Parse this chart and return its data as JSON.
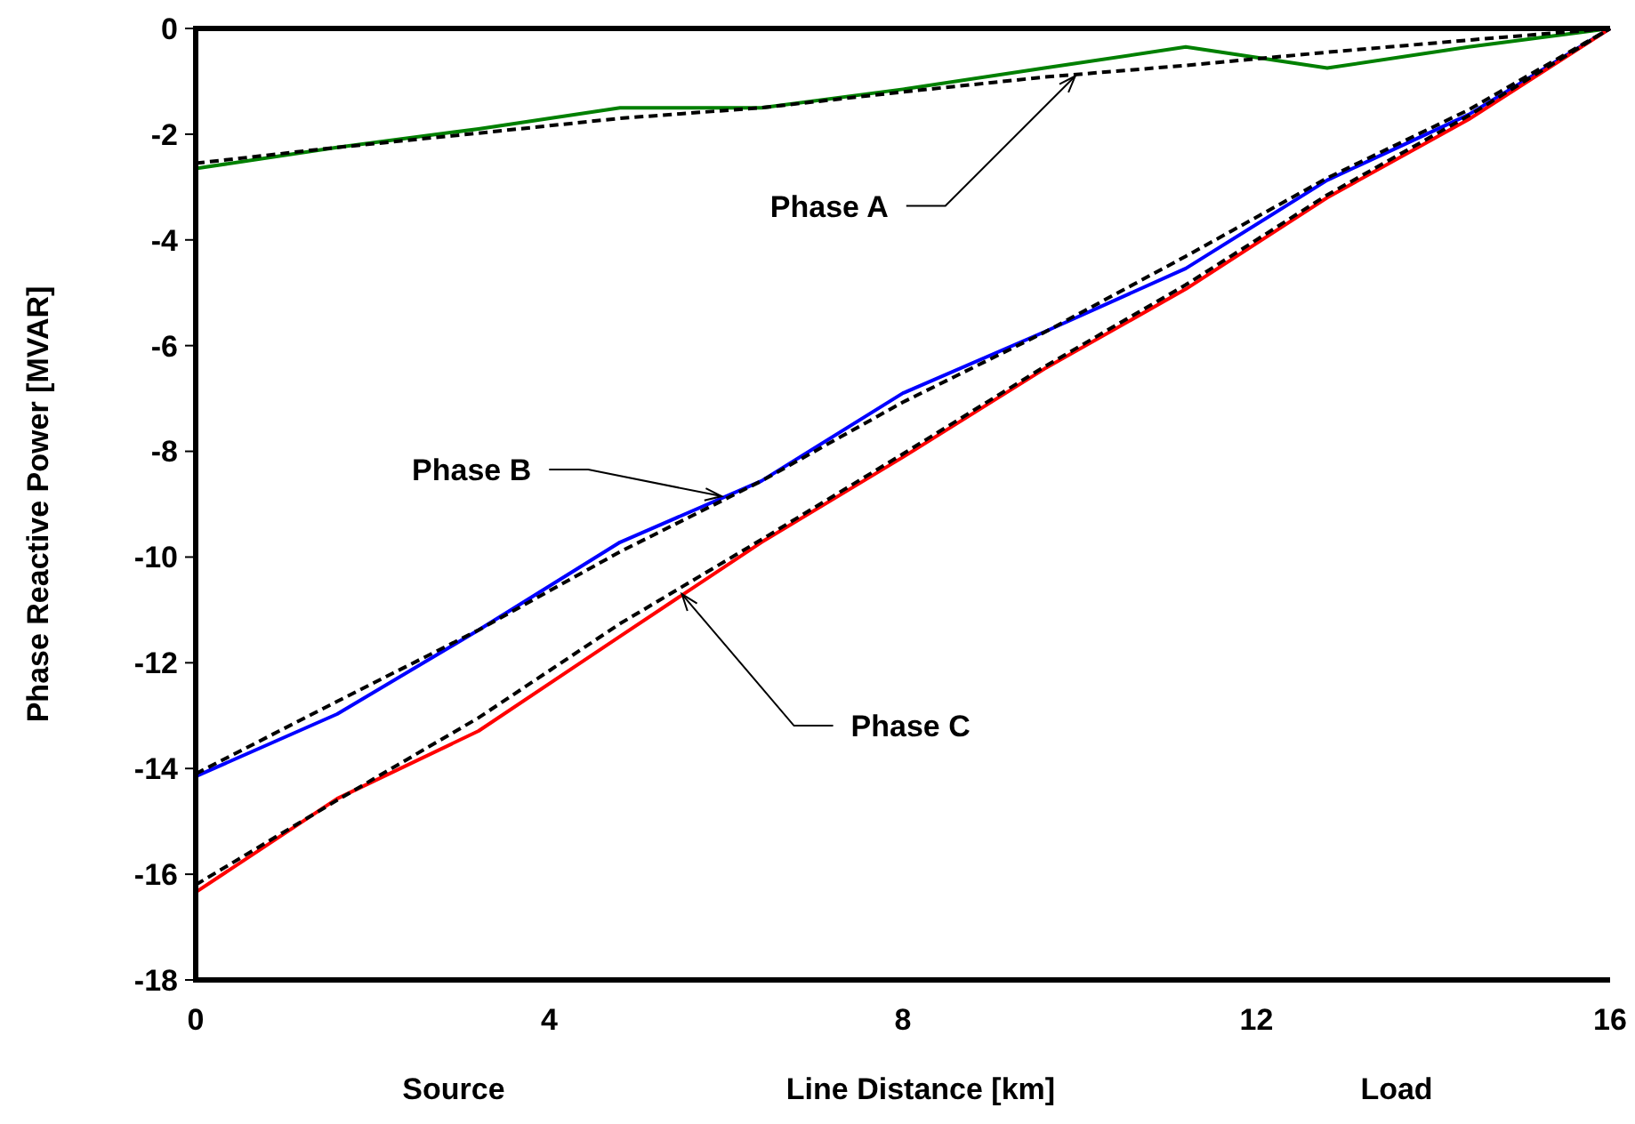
{
  "chart_data": {
    "type": "line",
    "ylabel": "Phase Reactive Power [MVAR]",
    "xlabel": "Line Distance [km]",
    "x": [
      0,
      1.6,
      3.2,
      4.8,
      6.4,
      8,
      9.6,
      11.2,
      12.8,
      14.4,
      16
    ],
    "xlim": [
      0,
      16
    ],
    "xticks": [
      0,
      4,
      8,
      12,
      16
    ],
    "ylim": [
      -18,
      0
    ],
    "yticks": [
      -18,
      -16,
      -14,
      -12,
      -10,
      -8,
      -6,
      -4,
      -2,
      0
    ],
    "grid": false,
    "marker": "none",
    "series": [
      {
        "color": "#008000",
        "line_style": "solid",
        "values": [
          -2.65,
          -2.25,
          -1.9,
          -1.5,
          -1.5,
          -1.15,
          -0.75,
          -0.35,
          -0.75,
          -0.35,
          0
        ]
      },
      {
        "color": "#0000ff",
        "line_style": "solid",
        "values": [
          -14.15,
          -12.97,
          -11.38,
          -9.72,
          -8.56,
          -6.9,
          -5.74,
          -4.54,
          -2.87,
          -1.63,
          0
        ]
      },
      {
        "color": "#ff0000",
        "line_style": "solid",
        "values": [
          -16.34,
          -14.57,
          -13.29,
          -11.5,
          -9.72,
          -8.11,
          -6.44,
          -4.93,
          -3.2,
          -1.72,
          0
        ]
      },
      {
        "color": "#000000",
        "line_style": "dashed",
        "values": [
          -2.55,
          -2.25,
          -1.98,
          -1.7,
          -1.5,
          -1.2,
          -0.92,
          -0.7,
          -0.45,
          -0.22,
          0
        ]
      },
      {
        "color": "#000000",
        "line_style": "dashed",
        "values": [
          -14.1,
          -12.73,
          -11.38,
          -9.9,
          -8.56,
          -7.07,
          -5.75,
          -4.31,
          -2.83,
          -1.54,
          0
        ]
      },
      {
        "color": "#000000",
        "line_style": "dashed",
        "values": [
          -16.2,
          -14.6,
          -13.04,
          -11.26,
          -9.67,
          -8.05,
          -6.4,
          -4.85,
          -3.15,
          -1.65,
          0
        ]
      }
    ],
    "annotations": [
      {
        "text": "Phase A",
        "x": 9.95,
        "y": -0.9
      },
      {
        "text": "Phase B",
        "x": 5.95,
        "y": -8.85
      },
      {
        "text": "Phase C",
        "x": 5.5,
        "y": -10.7
      },
      "Source",
      "Load"
    ]
  }
}
